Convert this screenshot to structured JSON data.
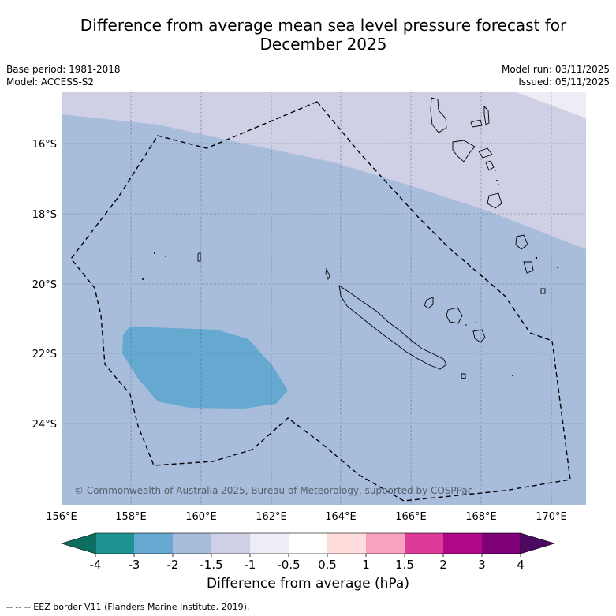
{
  "title_line1": "Difference from average mean sea level pressure forecast for",
  "title_line2": "December 2025",
  "base_period": "Base period: 1981-2018",
  "model": "Model: ACCESS-S2",
  "model_run": "Model run: 03/11/2025",
  "issued": "Issued: 05/11/2025",
  "lat_labels": [
    "16°S",
    "18°S",
    "20°S",
    "22°S",
    "24°S"
  ],
  "lon_labels": [
    "156°E",
    "158°E",
    "160°E",
    "162°E",
    "164°E",
    "166°E",
    "168°E",
    "170°E"
  ],
  "copyright": "© Commonwealth of Australia 2025, Bureau of Meteorology, supported by COSPPac",
  "colorbar": {
    "title": "Difference from average (hPa)",
    "ticks": [
      "-4",
      "-3",
      "-2",
      "-1.5",
      "-1",
      "-0.5",
      "0.5",
      "1",
      "1.5",
      "2",
      "3",
      "4"
    ],
    "under_color": "#0b6e5f",
    "over_color": "#4a0a60",
    "colors": [
      "#1e9394",
      "#65a9d0",
      "#a8bcdc",
      "#cfd0e6",
      "#eeecf4",
      "#ffffff",
      "#ffdddd",
      "#f7a3bf",
      "#de3a9a",
      "#b00888",
      "#7d0079"
    ]
  },
  "footnote": "--  --  -- EEZ border V11 (Flanders Marine Institute, 2019)."
}
